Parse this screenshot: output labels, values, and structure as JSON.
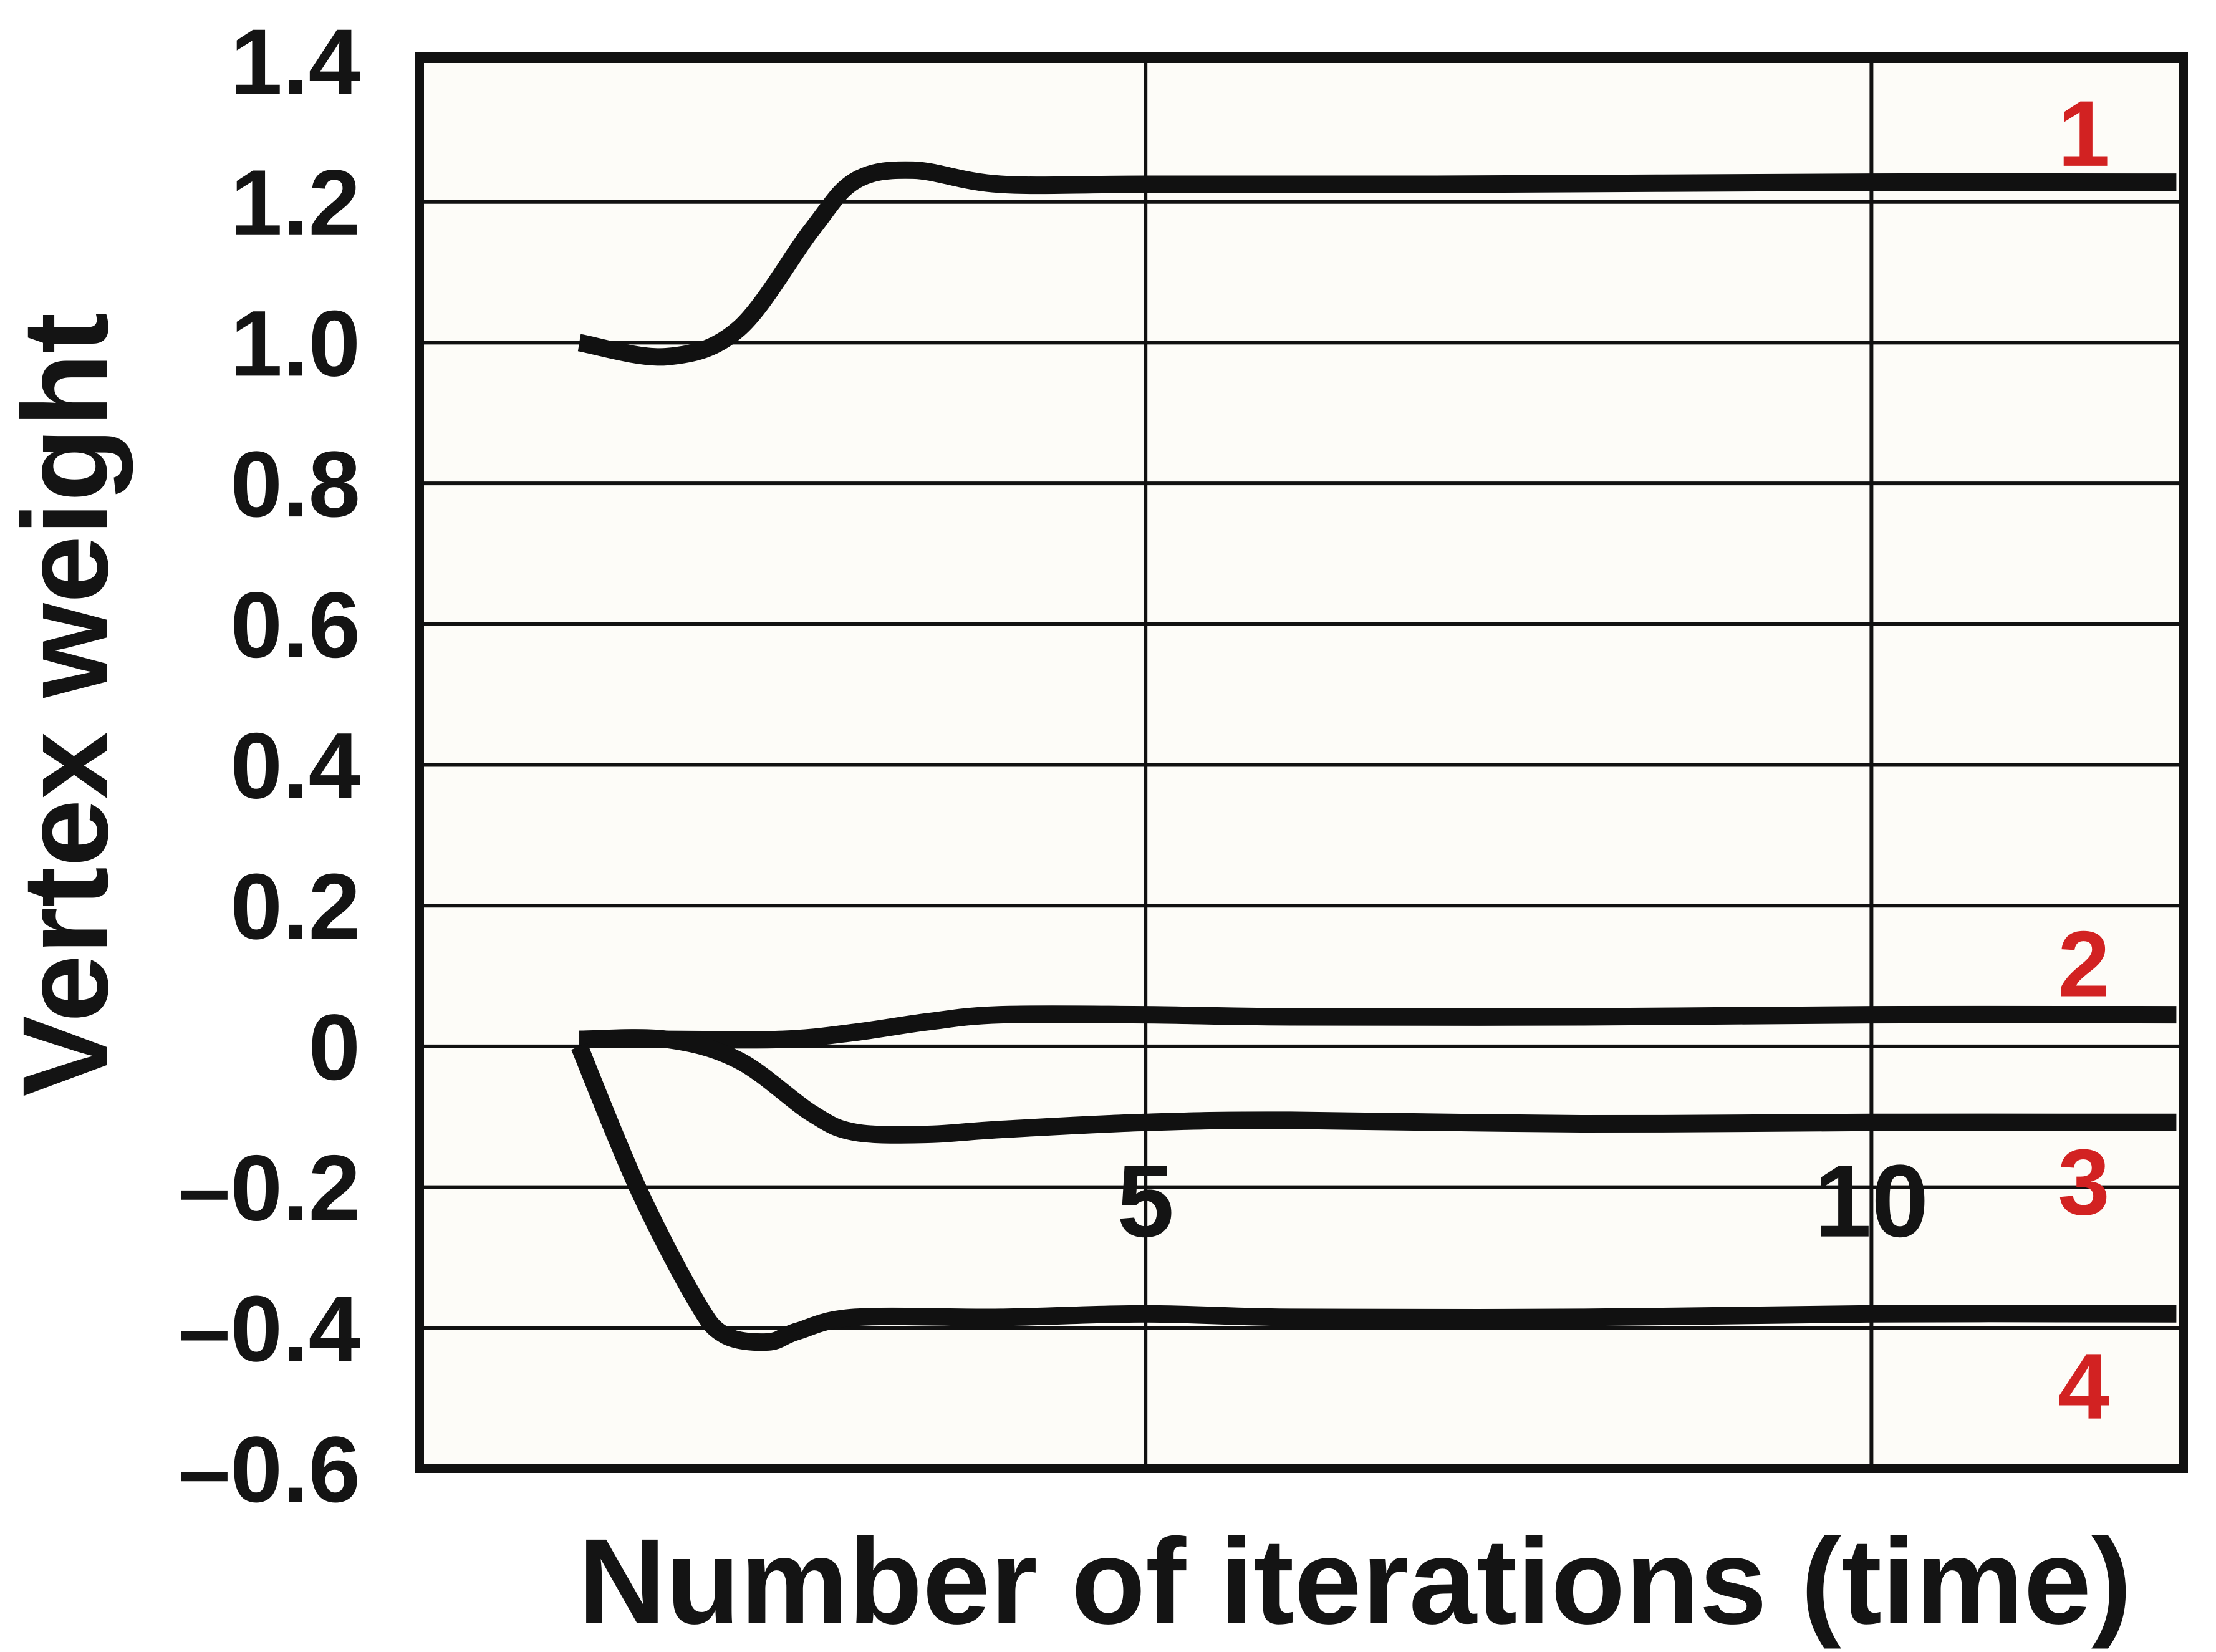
{
  "chart_data": {
    "type": "line",
    "title": "",
    "xlabel": "Number of iterations (time)",
    "ylabel": "Vertex weight",
    "xlim": [
      0,
      12.15
    ],
    "ylim": [
      -0.6,
      1.4
    ],
    "yticks": [
      -0.6,
      -0.4,
      -0.2,
      0,
      0.2,
      0.4,
      0.6,
      0.8,
      1.0,
      1.2,
      1.4
    ],
    "ytick_labels": [
      "–0.6",
      "–0.4",
      "–0.2",
      "0",
      "0.2",
      "0.4",
      "0.6",
      "0.8",
      "1.0",
      "1.2",
      "1.4"
    ],
    "xticks": [
      5,
      10
    ],
    "xtick_labels": [
      "5",
      "10"
    ],
    "grid": true,
    "background_color": "#fdfcf8",
    "line_color": "#111111",
    "label_color": "#d22222",
    "series": [
      {
        "name": "1",
        "x": [
          1.1,
          1.7,
          2.2,
          2.7,
          3.0,
          3.4,
          4.0,
          5.0,
          7.0,
          10.0,
          12.1
        ],
        "y": [
          1.0,
          0.98,
          1.02,
          1.16,
          1.23,
          1.245,
          1.225,
          1.225,
          1.225,
          1.228,
          1.228
        ]
      },
      {
        "name": "2",
        "x": [
          1.1,
          1.7,
          2.5,
          3.0,
          3.5,
          4.0,
          5.0,
          6.0,
          8.0,
          10.0,
          12.1
        ],
        "y": [
          0.01,
          0.01,
          0.01,
          0.02,
          0.035,
          0.045,
          0.045,
          0.042,
          0.042,
          0.045,
          0.045
        ]
      },
      {
        "name": "3",
        "x": [
          1.1,
          1.7,
          2.2,
          2.7,
          3.0,
          3.5,
          4.0,
          5.0,
          6.0,
          8.0,
          10.0,
          12.1
        ],
        "y": [
          0.01,
          0.01,
          -0.02,
          -0.095,
          -0.122,
          -0.125,
          -0.118,
          -0.108,
          -0.105,
          -0.11,
          -0.108,
          -0.108
        ]
      },
      {
        "name": "4",
        "x": [
          1.1,
          1.5,
          1.9,
          2.1,
          2.4,
          2.6,
          3.0,
          4.0,
          5.0,
          6.0,
          8.0,
          10.0,
          12.1
        ],
        "y": [
          0.0,
          -0.2,
          -0.36,
          -0.41,
          -0.42,
          -0.405,
          -0.385,
          -0.385,
          -0.38,
          -0.385,
          -0.385,
          -0.38,
          -0.38
        ]
      }
    ],
    "series_labels": [
      {
        "text": "1",
        "y": 1.3
      },
      {
        "text": "2",
        "y": 0.12
      },
      {
        "text": "3",
        "y": -0.19
      },
      {
        "text": "4",
        "y": -0.48
      }
    ]
  }
}
